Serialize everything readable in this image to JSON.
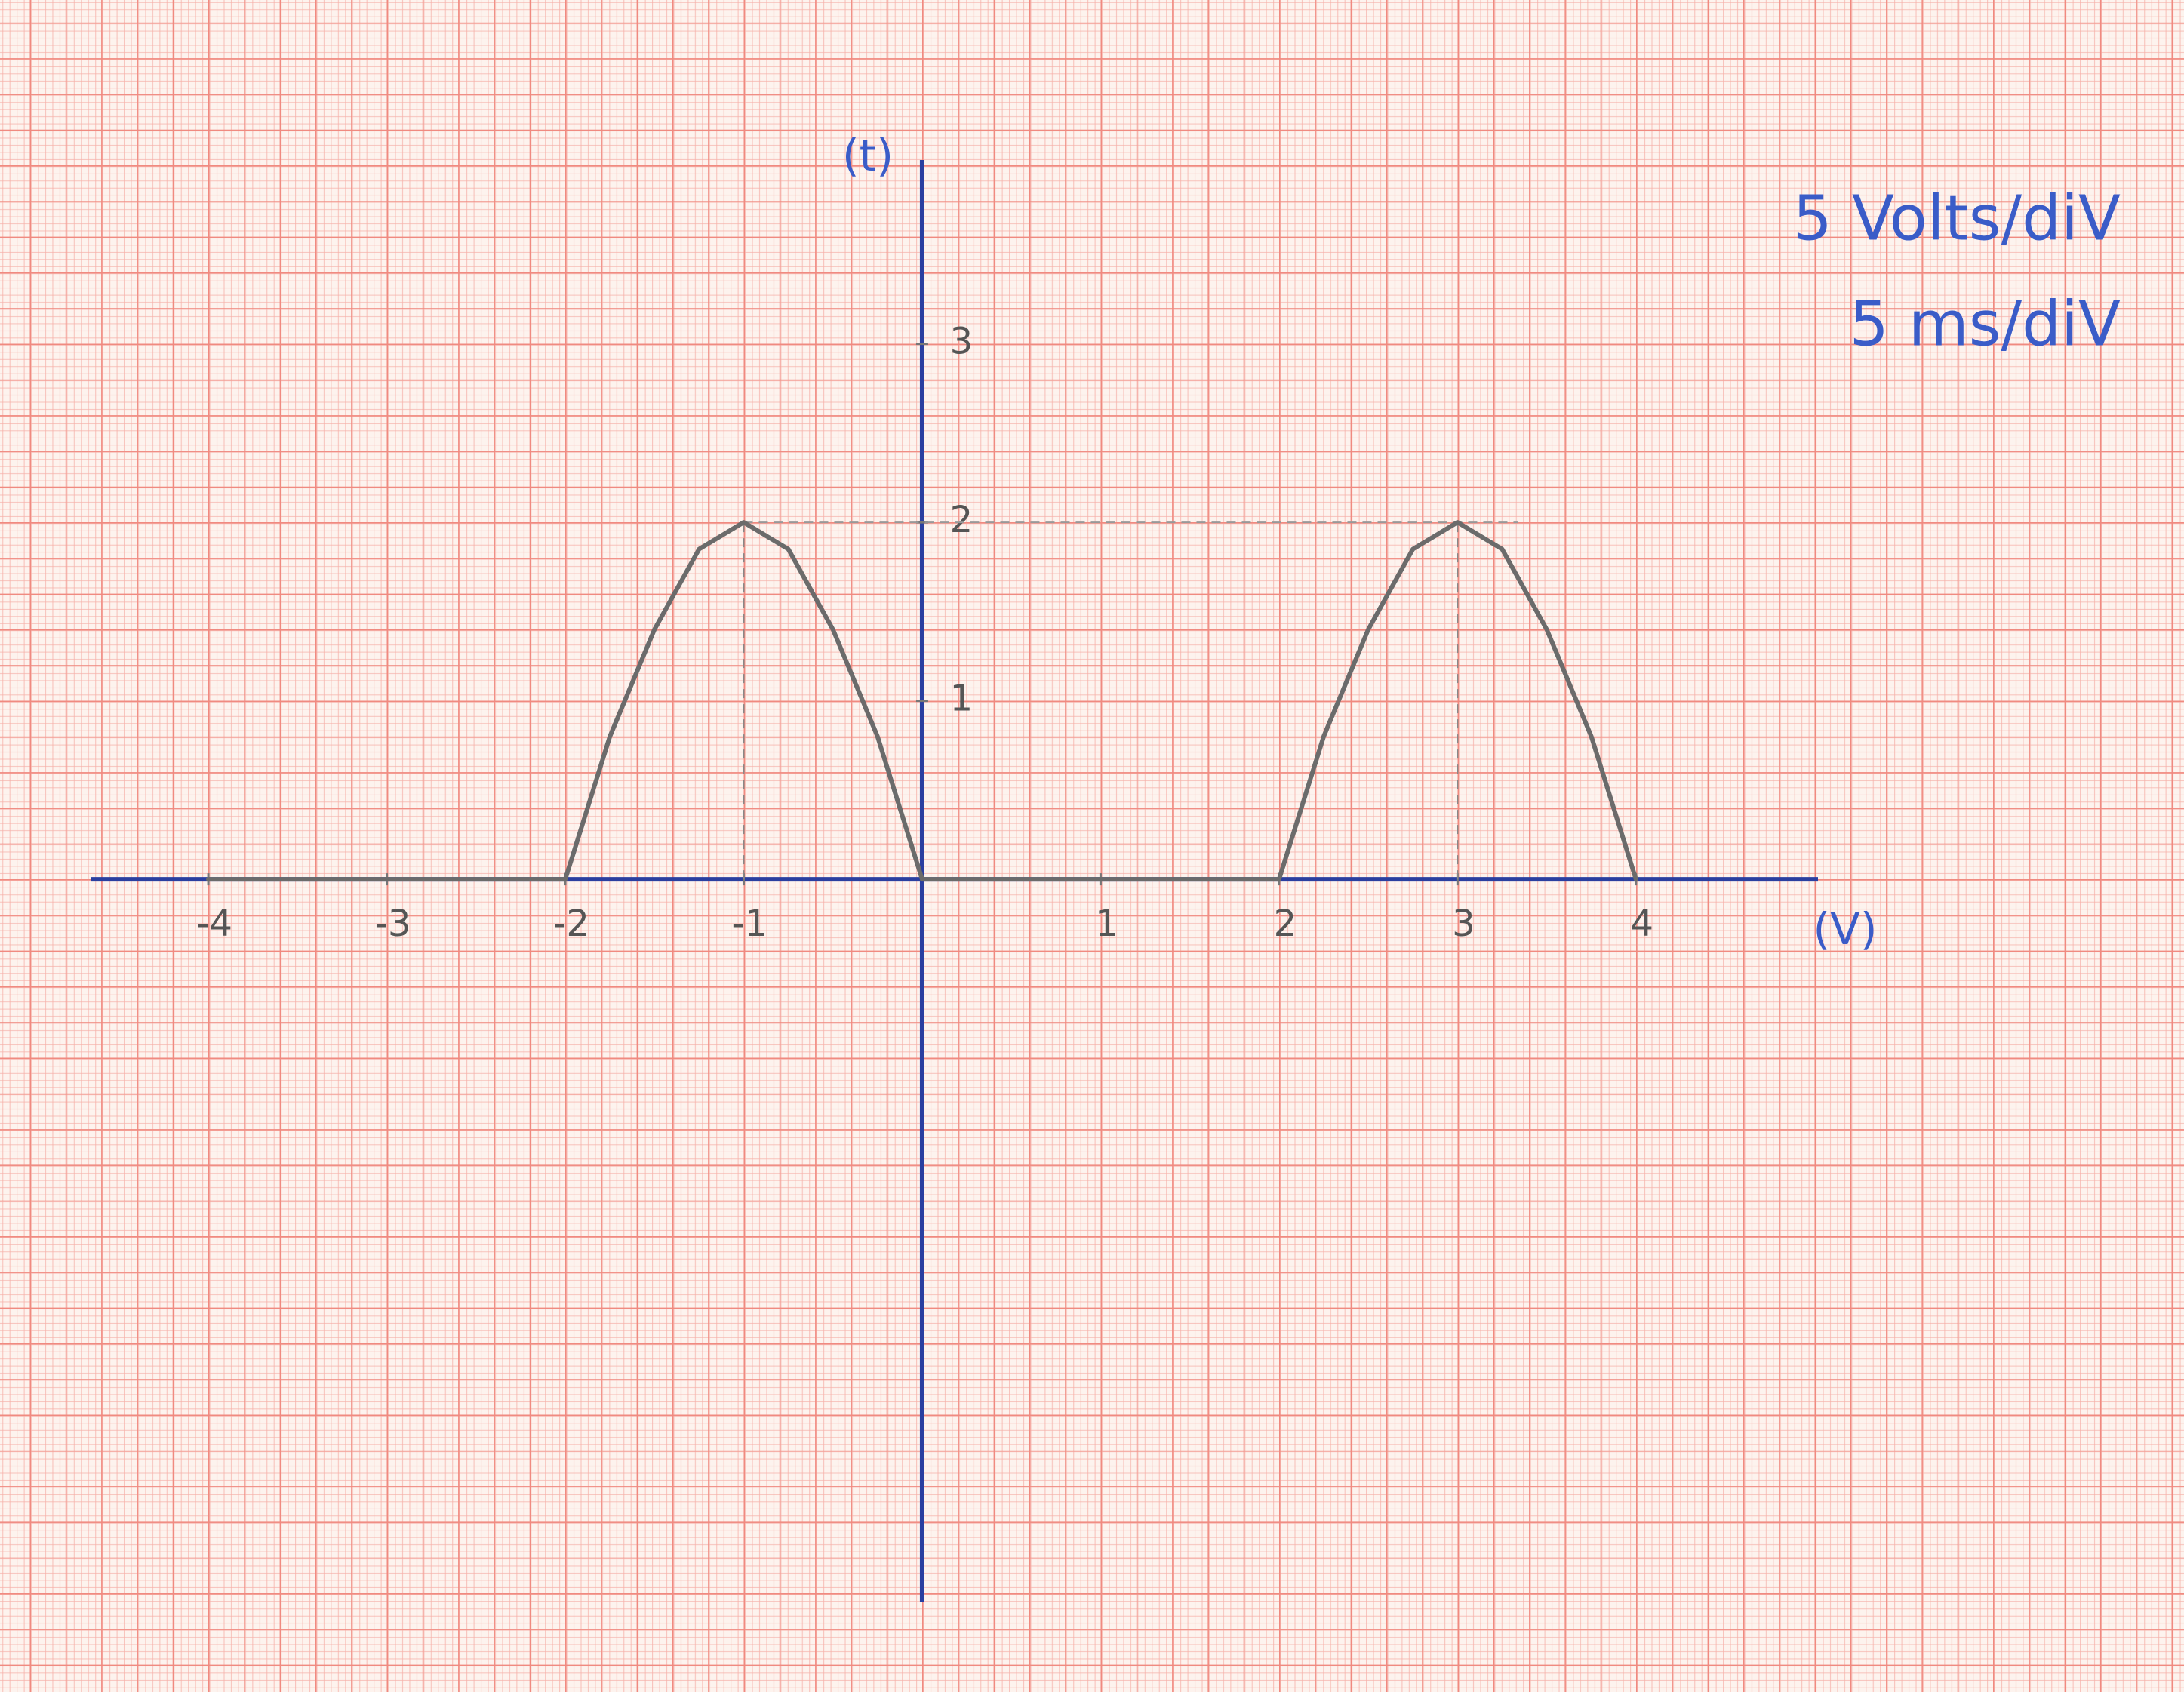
{
  "chart_data": {
    "type": "line",
    "x_label": "(V)",
    "y_label": "(t)",
    "annotations": [
      "5 Volts/diV",
      "5 ms/diV"
    ],
    "x": [
      -4,
      -2,
      -1.75,
      -1.5,
      -1.25,
      -1,
      -0.75,
      -0.5,
      -0.25,
      0,
      2,
      2.25,
      2.5,
      2.75,
      3,
      3.25,
      3.5,
      3.75,
      4
    ],
    "series": [
      {
        "color": "#6b6b6b",
        "values": [
          0,
          0,
          0.8,
          1.4,
          1.85,
          2,
          1.85,
          1.4,
          0.8,
          0,
          0,
          0.8,
          1.4,
          1.85,
          2,
          1.85,
          1.4,
          0.8,
          0
        ]
      }
    ],
    "xlim": [
      -4.66,
      5.02
    ],
    "ylim": [
      -4.05,
      4.03
    ],
    "xticks": [
      -4,
      -3,
      -2,
      -1,
      1,
      2,
      3,
      4
    ],
    "yticks": [
      1,
      2,
      3
    ],
    "axis_color": "#2a3fa0",
    "annotation_color": "#3a5cc8"
  }
}
